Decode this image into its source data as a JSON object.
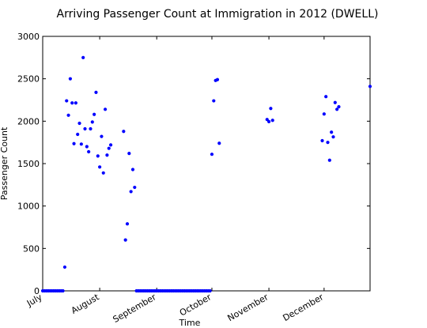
{
  "chart_data": {
    "type": "scatter",
    "title": "Arriving Passenger Count at Immigration in 2012 (DWELL)",
    "xlabel": "Time",
    "ylabel": "Passenger Count",
    "ylim": [
      0,
      3000
    ],
    "yticks": [
      0,
      500,
      1000,
      1500,
      2000,
      2500,
      3000
    ],
    "xlim": [
      "2012-07-01",
      "2012-12-26"
    ],
    "xticks": [
      {
        "label": "July",
        "date": "2012-07-01"
      },
      {
        "label": "August",
        "date": "2012-08-01"
      },
      {
        "label": "September",
        "date": "2012-09-01"
      },
      {
        "label": "October",
        "date": "2012-10-01"
      },
      {
        "label": "November",
        "date": "2012-11-01"
      },
      {
        "label": "December",
        "date": "2012-12-01"
      }
    ],
    "grid": false,
    "marker_color": "#0000ff",
    "series": [
      {
        "points": [
          {
            "x": "2012-07-01",
            "y": 0
          },
          {
            "x": "2012-07-02",
            "y": 0
          },
          {
            "x": "2012-07-03",
            "y": 0
          },
          {
            "x": "2012-07-04",
            "y": 0
          },
          {
            "x": "2012-07-05",
            "y": 0
          },
          {
            "x": "2012-07-06",
            "y": 0
          },
          {
            "x": "2012-07-07",
            "y": 0
          },
          {
            "x": "2012-07-08",
            "y": 0
          },
          {
            "x": "2012-07-09",
            "y": 0
          },
          {
            "x": "2012-07-10",
            "y": 0
          },
          {
            "x": "2012-07-11",
            "y": 0
          },
          {
            "x": "2012-07-12",
            "y": 0
          },
          {
            "x": "2012-07-13",
            "y": 280
          },
          {
            "x": "2012-07-14",
            "y": 2240
          },
          {
            "x": "2012-07-15",
            "y": 2070
          },
          {
            "x": "2012-07-16",
            "y": 2500
          },
          {
            "x": "2012-07-17",
            "y": 2215
          },
          {
            "x": "2012-07-18",
            "y": 1735
          },
          {
            "x": "2012-07-19",
            "y": 2215
          },
          {
            "x": "2012-07-20",
            "y": 1845
          },
          {
            "x": "2012-07-21",
            "y": 1975
          },
          {
            "x": "2012-07-22",
            "y": 1730
          },
          {
            "x": "2012-07-23",
            "y": 2750
          },
          {
            "x": "2012-07-24",
            "y": 1910
          },
          {
            "x": "2012-07-25",
            "y": 1700
          },
          {
            "x": "2012-07-26",
            "y": 1640
          },
          {
            "x": "2012-07-27",
            "y": 1910
          },
          {
            "x": "2012-07-28",
            "y": 1990
          },
          {
            "x": "2012-07-29",
            "y": 2080
          },
          {
            "x": "2012-07-30",
            "y": 2340
          },
          {
            "x": "2012-07-31",
            "y": 1590
          },
          {
            "x": "2012-08-01",
            "y": 1460
          },
          {
            "x": "2012-08-02",
            "y": 1820
          },
          {
            "x": "2012-08-03",
            "y": 1390
          },
          {
            "x": "2012-08-04",
            "y": 2140
          },
          {
            "x": "2012-08-05",
            "y": 1600
          },
          {
            "x": "2012-08-06",
            "y": 1680
          },
          {
            "x": "2012-08-07",
            "y": 1720
          },
          {
            "x": "2012-08-14",
            "y": 1880
          },
          {
            "x": "2012-08-15",
            "y": 600
          },
          {
            "x": "2012-08-16",
            "y": 790
          },
          {
            "x": "2012-08-17",
            "y": 1620
          },
          {
            "x": "2012-08-18",
            "y": 1170
          },
          {
            "x": "2012-08-19",
            "y": 1430
          },
          {
            "x": "2012-08-20",
            "y": 1220
          },
          {
            "x": "2012-08-21",
            "y": 0
          },
          {
            "x": "2012-08-22",
            "y": 0
          },
          {
            "x": "2012-08-23",
            "y": 0
          },
          {
            "x": "2012-08-24",
            "y": 0
          },
          {
            "x": "2012-08-25",
            "y": 0
          },
          {
            "x": "2012-08-26",
            "y": 0
          },
          {
            "x": "2012-08-27",
            "y": 0
          },
          {
            "x": "2012-08-28",
            "y": 0
          },
          {
            "x": "2012-08-29",
            "y": 0
          },
          {
            "x": "2012-08-30",
            "y": 0
          },
          {
            "x": "2012-08-31",
            "y": 0
          },
          {
            "x": "2012-09-01",
            "y": 0
          },
          {
            "x": "2012-09-02",
            "y": 0
          },
          {
            "x": "2012-09-03",
            "y": 0
          },
          {
            "x": "2012-09-04",
            "y": 0
          },
          {
            "x": "2012-09-05",
            "y": 0
          },
          {
            "x": "2012-09-06",
            "y": 0
          },
          {
            "x": "2012-09-07",
            "y": 0
          },
          {
            "x": "2012-09-08",
            "y": 0
          },
          {
            "x": "2012-09-09",
            "y": 0
          },
          {
            "x": "2012-09-10",
            "y": 0
          },
          {
            "x": "2012-09-11",
            "y": 0
          },
          {
            "x": "2012-09-12",
            "y": 0
          },
          {
            "x": "2012-09-13",
            "y": 0
          },
          {
            "x": "2012-09-14",
            "y": 0
          },
          {
            "x": "2012-09-15",
            "y": 0
          },
          {
            "x": "2012-09-16",
            "y": 0
          },
          {
            "x": "2012-09-17",
            "y": 0
          },
          {
            "x": "2012-09-18",
            "y": 0
          },
          {
            "x": "2012-09-19",
            "y": 0
          },
          {
            "x": "2012-09-20",
            "y": 0
          },
          {
            "x": "2012-09-21",
            "y": 0
          },
          {
            "x": "2012-09-22",
            "y": 0
          },
          {
            "x": "2012-09-23",
            "y": 0
          },
          {
            "x": "2012-09-24",
            "y": 0
          },
          {
            "x": "2012-09-25",
            "y": 0
          },
          {
            "x": "2012-09-26",
            "y": 0
          },
          {
            "x": "2012-09-27",
            "y": 0
          },
          {
            "x": "2012-09-28",
            "y": 0
          },
          {
            "x": "2012-09-29",
            "y": 0
          },
          {
            "x": "2012-09-30",
            "y": 0
          },
          {
            "x": "2012-10-01",
            "y": 1610
          },
          {
            "x": "2012-10-02",
            "y": 2240
          },
          {
            "x": "2012-10-03",
            "y": 2480
          },
          {
            "x": "2012-10-04",
            "y": 2490
          },
          {
            "x": "2012-10-05",
            "y": 1740
          },
          {
            "x": "2012-10-31",
            "y": 2020
          },
          {
            "x": "2012-11-01",
            "y": 1995
          },
          {
            "x": "2012-11-02",
            "y": 2150
          },
          {
            "x": "2012-11-03",
            "y": 2010
          },
          {
            "x": "2012-11-30",
            "y": 1770
          },
          {
            "x": "2012-12-01",
            "y": 2085
          },
          {
            "x": "2012-12-02",
            "y": 2290
          },
          {
            "x": "2012-12-03",
            "y": 1750
          },
          {
            "x": "2012-12-04",
            "y": 1540
          },
          {
            "x": "2012-12-05",
            "y": 1870
          },
          {
            "x": "2012-12-06",
            "y": 1815
          },
          {
            "x": "2012-12-07",
            "y": 2220
          },
          {
            "x": "2012-12-08",
            "y": 2140
          },
          {
            "x": "2012-12-09",
            "y": 2170
          },
          {
            "x": "2012-12-26",
            "y": 2410
          }
        ]
      }
    ]
  }
}
